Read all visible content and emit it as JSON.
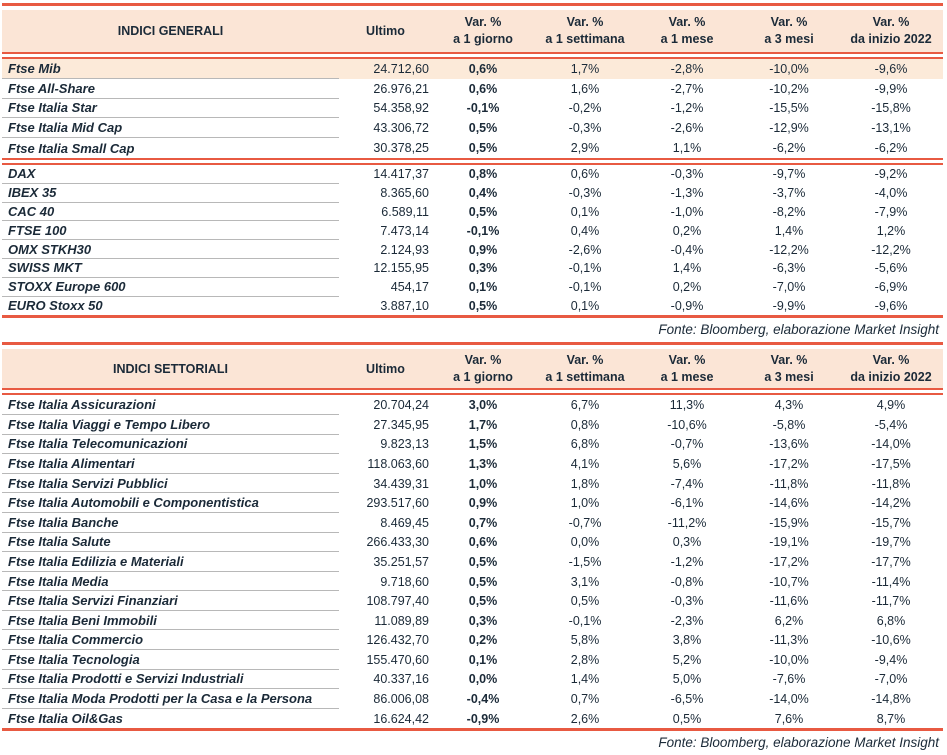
{
  "colors": {
    "accent_line": "#e85a42",
    "header_bg": "#fbe5d6",
    "highlight_bg": "#fcead9",
    "text": "#1b2a38",
    "separator": "#b8b8b8"
  },
  "columns": {
    "ultimo": "Ultimo",
    "variations": [
      {
        "line1": "Var. %",
        "line2": "a 1 giorno"
      },
      {
        "line1": "Var. %",
        "line2": "a 1 settimana"
      },
      {
        "line1": "Var. %",
        "line2": "a 1 mese"
      },
      {
        "line1": "Var. %",
        "line2": "a 3 mesi"
      },
      {
        "line1": "Var. %",
        "line2": "da inizio 2022"
      }
    ]
  },
  "source_note": "Fonte: Bloomberg, elaborazione Market Insight",
  "tables": [
    {
      "title": "INDICI GENERALI",
      "groups": [
        {
          "rows": [
            {
              "name": "Ftse Mib",
              "highlight": true,
              "ultimo": "24.712,60",
              "values": [
                "0,6%",
                "1,7%",
                "-2,8%",
                "-10,0%",
                "-9,6%"
              ]
            },
            {
              "name": "Ftse All-Share",
              "ultimo": "26.976,21",
              "values": [
                "0,6%",
                "1,6%",
                "-2,7%",
                "-10,2%",
                "-9,9%"
              ]
            },
            {
              "name": "Ftse Italia Star",
              "ultimo": "54.358,92",
              "values": [
                "-0,1%",
                "-0,2%",
                "-1,2%",
                "-15,5%",
                "-15,8%"
              ]
            },
            {
              "name": "Ftse Italia Mid Cap",
              "ultimo": "43.306,72",
              "values": [
                "0,5%",
                "-0,3%",
                "-2,6%",
                "-12,9%",
                "-13,1%"
              ]
            },
            {
              "name": "Ftse Italia Small Cap",
              "ultimo": "30.378,25",
              "values": [
                "0,5%",
                "2,9%",
                "1,1%",
                "-6,2%",
                "-6,2%"
              ]
            }
          ]
        },
        {
          "rows": [
            {
              "name": "DAX",
              "ultimo": "14.417,37",
              "values": [
                "0,8%",
                "0,6%",
                "-0,3%",
                "-9,7%",
                "-9,2%"
              ]
            },
            {
              "name": "IBEX 35",
              "ultimo": "8.365,60",
              "values": [
                "0,4%",
                "-0,3%",
                "-1,3%",
                "-3,7%",
                "-4,0%"
              ]
            },
            {
              "name": "CAC 40",
              "ultimo": "6.589,11",
              "values": [
                "0,5%",
                "0,1%",
                "-1,0%",
                "-8,2%",
                "-7,9%"
              ]
            },
            {
              "name": "FTSE 100",
              "ultimo": "7.473,14",
              "values": [
                "-0,1%",
                "0,4%",
                "0,2%",
                "1,4%",
                "1,2%"
              ]
            },
            {
              "name": "OMX STKH30",
              "ultimo": "2.124,93",
              "values": [
                "0,9%",
                "-2,6%",
                "-0,4%",
                "-12,2%",
                "-12,2%"
              ]
            },
            {
              "name": "SWISS MKT",
              "ultimo": "12.155,95",
              "values": [
                "0,3%",
                "-0,1%",
                "1,4%",
                "-6,3%",
                "-5,6%"
              ]
            },
            {
              "name": "STOXX Europe 600",
              "ultimo": "454,17",
              "values": [
                "0,1%",
                "-0,1%",
                "0,2%",
                "-7,0%",
                "-6,9%"
              ]
            },
            {
              "name": "EURO Stoxx 50",
              "ultimo": "3.887,10",
              "values": [
                "0,5%",
                "0,1%",
                "-0,9%",
                "-9,9%",
                "-9,6%"
              ]
            }
          ]
        }
      ]
    },
    {
      "title": "INDICI SETTORIALI",
      "groups": [
        {
          "rows": [
            {
              "name": "Ftse Italia Assicurazioni",
              "ultimo": "20.704,24",
              "values": [
                "3,0%",
                "6,7%",
                "11,3%",
                "4,3%",
                "4,9%"
              ]
            },
            {
              "name": "Ftse Italia Viaggi e Tempo Libero",
              "ultimo": "27.345,95",
              "values": [
                "1,7%",
                "0,8%",
                "-10,6%",
                "-5,8%",
                "-5,4%"
              ]
            },
            {
              "name": "Ftse Italia Telecomunicazioni",
              "ultimo": "9.823,13",
              "values": [
                "1,5%",
                "6,8%",
                "-0,7%",
                "-13,6%",
                "-14,0%"
              ]
            },
            {
              "name": "Ftse Italia Alimentari",
              "ultimo": "118.063,60",
              "values": [
                "1,3%",
                "4,1%",
                "5,6%",
                "-17,2%",
                "-17,5%"
              ]
            },
            {
              "name": "Ftse Italia Servizi Pubblici",
              "ultimo": "34.439,31",
              "values": [
                "1,0%",
                "1,8%",
                "-7,4%",
                "-11,8%",
                "-11,8%"
              ]
            },
            {
              "name": "Ftse Italia Automobili e Componentistica",
              "ultimo": "293.517,60",
              "values": [
                "0,9%",
                "1,0%",
                "-6,1%",
                "-14,6%",
                "-14,2%"
              ]
            },
            {
              "name": "Ftse Italia Banche",
              "ultimo": "8.469,45",
              "values": [
                "0,7%",
                "-0,7%",
                "-11,2%",
                "-15,9%",
                "-15,7%"
              ]
            },
            {
              "name": "Ftse Italia Salute",
              "ultimo": "266.433,30",
              "values": [
                "0,6%",
                "0,0%",
                "0,3%",
                "-19,1%",
                "-19,7%"
              ]
            },
            {
              "name": "Ftse Italia Edilizia e Materiali",
              "ultimo": "35.251,57",
              "values": [
                "0,5%",
                "-1,5%",
                "-1,2%",
                "-17,2%",
                "-17,7%"
              ]
            },
            {
              "name": "Ftse Italia Media",
              "ultimo": "9.718,60",
              "values": [
                "0,5%",
                "3,1%",
                "-0,8%",
                "-10,7%",
                "-11,4%"
              ]
            },
            {
              "name": "Ftse Italia Servizi Finanziari",
              "ultimo": "108.797,40",
              "values": [
                "0,5%",
                "0,5%",
                "-0,3%",
                "-11,6%",
                "-11,7%"
              ]
            },
            {
              "name": "Ftse Italia Beni Immobili",
              "ultimo": "11.089,89",
              "values": [
                "0,3%",
                "-0,1%",
                "-2,3%",
                "6,2%",
                "6,8%"
              ]
            },
            {
              "name": "Ftse Italia Commercio",
              "ultimo": "126.432,70",
              "values": [
                "0,2%",
                "5,8%",
                "3,8%",
                "-11,3%",
                "-10,6%"
              ]
            },
            {
              "name": "Ftse Italia Tecnologia",
              "ultimo": "155.470,60",
              "values": [
                "0,1%",
                "2,8%",
                "5,2%",
                "-10,0%",
                "-9,4%"
              ]
            },
            {
              "name": "Ftse Italia Prodotti e Servizi Industriali",
              "ultimo": "40.337,16",
              "values": [
                "0,0%",
                "1,4%",
                "5,0%",
                "-7,6%",
                "-7,0%"
              ]
            },
            {
              "name": "Ftse Italia Moda Prodotti per la Casa e la Persona",
              "ultimo": "86.006,08",
              "values": [
                "-0,4%",
                "0,7%",
                "-6,5%",
                "-14,0%",
                "-14,8%"
              ]
            },
            {
              "name": "Ftse Italia Oil&Gas",
              "ultimo": "16.624,42",
              "values": [
                "-0,9%",
                "2,6%",
                "0,5%",
                "7,6%",
                "8,7%"
              ]
            }
          ]
        }
      ]
    }
  ]
}
